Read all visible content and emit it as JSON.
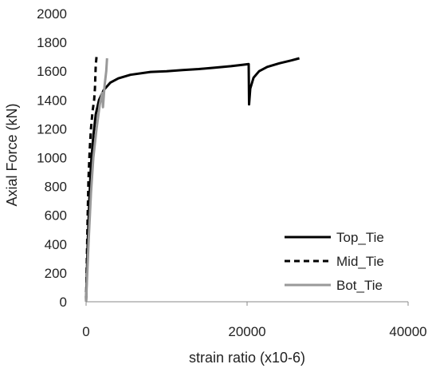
{
  "chart_data": {
    "type": "line",
    "title": "",
    "xlabel": "strain ratio (x10-6)",
    "ylabel": "Axial Force (kN)",
    "xlim": [
      0,
      40000
    ],
    "ylim": [
      0,
      2000
    ],
    "xticks": [
      0,
      20000,
      40000
    ],
    "yticks": [
      0,
      200,
      400,
      600,
      800,
      1000,
      1200,
      1400,
      1600,
      1800,
      2000
    ],
    "grid": false,
    "legend_position": "bottom-right",
    "series": [
      {
        "name": "Top_Tie",
        "color": "#000000",
        "dash": "solid",
        "points": [
          [
            0,
            0
          ],
          [
            200,
            400
          ],
          [
            400,
            700
          ],
          [
            600,
            950
          ],
          [
            900,
            1150
          ],
          [
            1200,
            1300
          ],
          [
            1600,
            1400
          ],
          [
            2200,
            1470
          ],
          [
            3000,
            1520
          ],
          [
            4000,
            1550
          ],
          [
            5500,
            1575
          ],
          [
            8000,
            1595
          ],
          [
            10000,
            1600
          ],
          [
            12000,
            1608
          ],
          [
            14000,
            1615
          ],
          [
            16000,
            1625
          ],
          [
            18000,
            1635
          ],
          [
            19500,
            1645
          ],
          [
            20200,
            1650
          ],
          [
            20250,
            1370
          ],
          [
            20400,
            1480
          ],
          [
            20800,
            1555
          ],
          [
            21500,
            1600
          ],
          [
            22500,
            1630
          ],
          [
            24000,
            1655
          ],
          [
            25500,
            1675
          ],
          [
            26500,
            1690
          ]
        ]
      },
      {
        "name": "Mid_Tie",
        "color": "#000000",
        "dash": "dashed",
        "points": [
          [
            0,
            0
          ],
          [
            100,
            300
          ],
          [
            200,
            600
          ],
          [
            300,
            850
          ],
          [
            450,
            1050
          ],
          [
            600,
            1200
          ],
          [
            800,
            1320
          ],
          [
            1000,
            1400
          ],
          [
            1100,
            1480
          ],
          [
            1150,
            1560
          ],
          [
            1200,
            1640
          ],
          [
            1300,
            1700
          ]
        ]
      },
      {
        "name": "Bot_Tie",
        "color": "#999999",
        "dash": "solid",
        "points": [
          [
            0,
            0
          ],
          [
            300,
            400
          ],
          [
            600,
            750
          ],
          [
            900,
            1000
          ],
          [
            1300,
            1200
          ],
          [
            1700,
            1370
          ],
          [
            2000,
            1450
          ],
          [
            2100,
            1350
          ],
          [
            2300,
            1500
          ],
          [
            2500,
            1600
          ],
          [
            2600,
            1690
          ]
        ]
      }
    ]
  }
}
